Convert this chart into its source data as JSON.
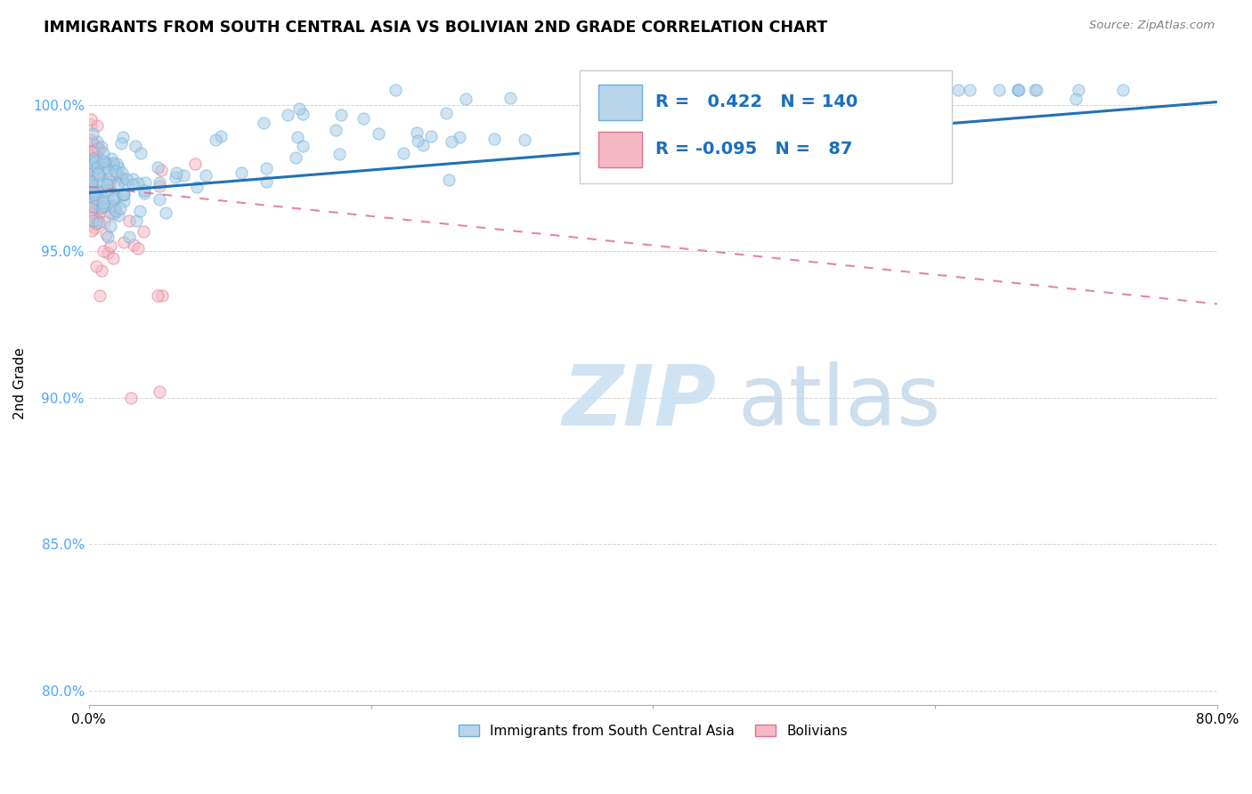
{
  "title": "IMMIGRANTS FROM SOUTH CENTRAL ASIA VS BOLIVIAN 2ND GRADE CORRELATION CHART",
  "source": "Source: ZipAtlas.com",
  "ylabel": "2nd Grade",
  "y_ticks": [
    80.0,
    85.0,
    90.0,
    95.0,
    100.0
  ],
  "x_lim": [
    0.0,
    80.0
  ],
  "y_lim": [
    79.5,
    101.5
  ],
  "r_blue": 0.422,
  "n_blue": 140,
  "r_pink": -0.095,
  "n_pink": 87,
  "blue_color": "#a8cde8",
  "blue_edge_color": "#6baed6",
  "pink_color": "#f5b8c4",
  "pink_edge_color": "#e07090",
  "trend_blue_color": "#2171b5",
  "trend_pink_color": "#e07090",
  "trend_blue_y0": 97.0,
  "trend_blue_y1": 100.1,
  "trend_pink_y0": 97.2,
  "trend_pink_y1": 93.2,
  "legend_label_blue": "Immigrants from South Central Asia",
  "legend_label_pink": "Bolivians",
  "legend_box_color": "#adc9e8",
  "legend_box_pink": "#f5b8c4",
  "watermark_zip_color": "#c8dff0",
  "watermark_atlas_color": "#b8d0e8"
}
